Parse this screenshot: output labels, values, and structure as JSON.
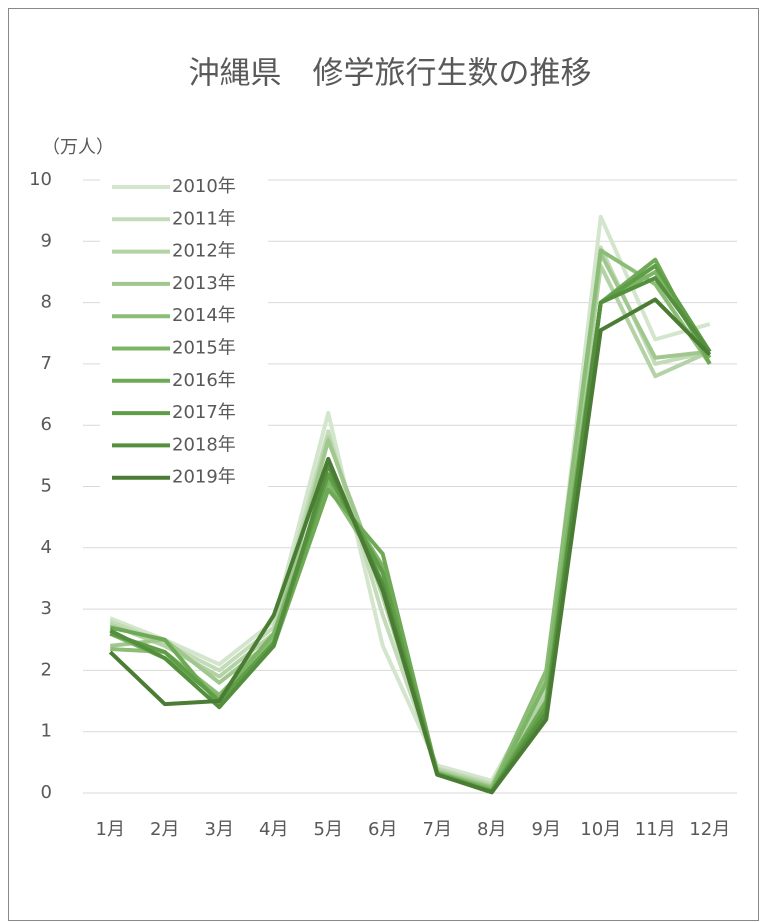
{
  "chart_data": {
    "type": "line",
    "title": "沖縄県　修学旅行生数の推移",
    "y_label": "（万人）",
    "categories": [
      "1月",
      "2月",
      "3月",
      "4月",
      "5月",
      "6月",
      "7月",
      "8月",
      "9月",
      "10月",
      "11月",
      "12月"
    ],
    "ylim": [
      0,
      10
    ],
    "yticks": [
      0,
      1,
      2,
      3,
      4,
      5,
      6,
      7,
      8,
      9,
      10
    ],
    "grid": true,
    "legend": "upper left",
    "series": [
      {
        "name": "2010年",
        "color": "#d3e5cc",
        "values": [
          2.85,
          2.5,
          2.1,
          2.8,
          6.2,
          2.4,
          0.45,
          0.2,
          1.8,
          9.4,
          7.4,
          7.65
        ]
      },
      {
        "name": "2011年",
        "color": "#c3dbb8",
        "values": [
          2.8,
          2.45,
          2.0,
          2.7,
          5.9,
          2.9,
          0.4,
          0.15,
          1.7,
          8.9,
          7.0,
          7.2
        ]
      },
      {
        "name": "2012年",
        "color": "#b3d2a5",
        "values": [
          2.75,
          2.4,
          1.9,
          2.6,
          5.8,
          3.2,
          0.38,
          0.12,
          1.6,
          8.6,
          6.8,
          7.2
        ]
      },
      {
        "name": "2013年",
        "color": "#a0c88e",
        "values": [
          2.4,
          2.5,
          1.8,
          2.5,
          5.75,
          3.4,
          0.35,
          0.1,
          1.9,
          8.8,
          7.1,
          7.2
        ]
      },
      {
        "name": "2014年",
        "color": "#8cbd76",
        "values": [
          2.35,
          2.3,
          1.6,
          2.5,
          5.0,
          3.6,
          0.33,
          0.08,
          2.0,
          8.85,
          8.3,
          7.0
        ]
      },
      {
        "name": "2015年",
        "color": "#7db567",
        "values": [
          2.6,
          2.2,
          1.55,
          2.6,
          5.1,
          3.7,
          0.33,
          0.05,
          1.8,
          8.0,
          8.5,
          7.1
        ]
      },
      {
        "name": "2016年",
        "color": "#6eaa55",
        "values": [
          2.7,
          2.5,
          1.45,
          2.4,
          4.95,
          3.9,
          0.32,
          0.04,
          1.5,
          8.0,
          8.7,
          7.0
        ]
      },
      {
        "name": "2017年",
        "color": "#5f9d47",
        "values": [
          2.6,
          2.3,
          1.5,
          2.45,
          5.2,
          3.6,
          0.3,
          0.02,
          1.4,
          8.0,
          8.6,
          7.2
        ]
      },
      {
        "name": "2018年",
        "color": "#538f3c",
        "values": [
          2.65,
          2.2,
          1.4,
          2.4,
          5.35,
          3.4,
          0.3,
          0.02,
          1.3,
          8.0,
          8.4,
          7.2
        ]
      },
      {
        "name": "2019年",
        "color": "#4a7d33",
        "values": [
          2.3,
          1.45,
          1.5,
          2.9,
          5.45,
          3.3,
          0.3,
          0.01,
          1.2,
          7.55,
          8.05,
          7.15
        ]
      }
    ]
  }
}
